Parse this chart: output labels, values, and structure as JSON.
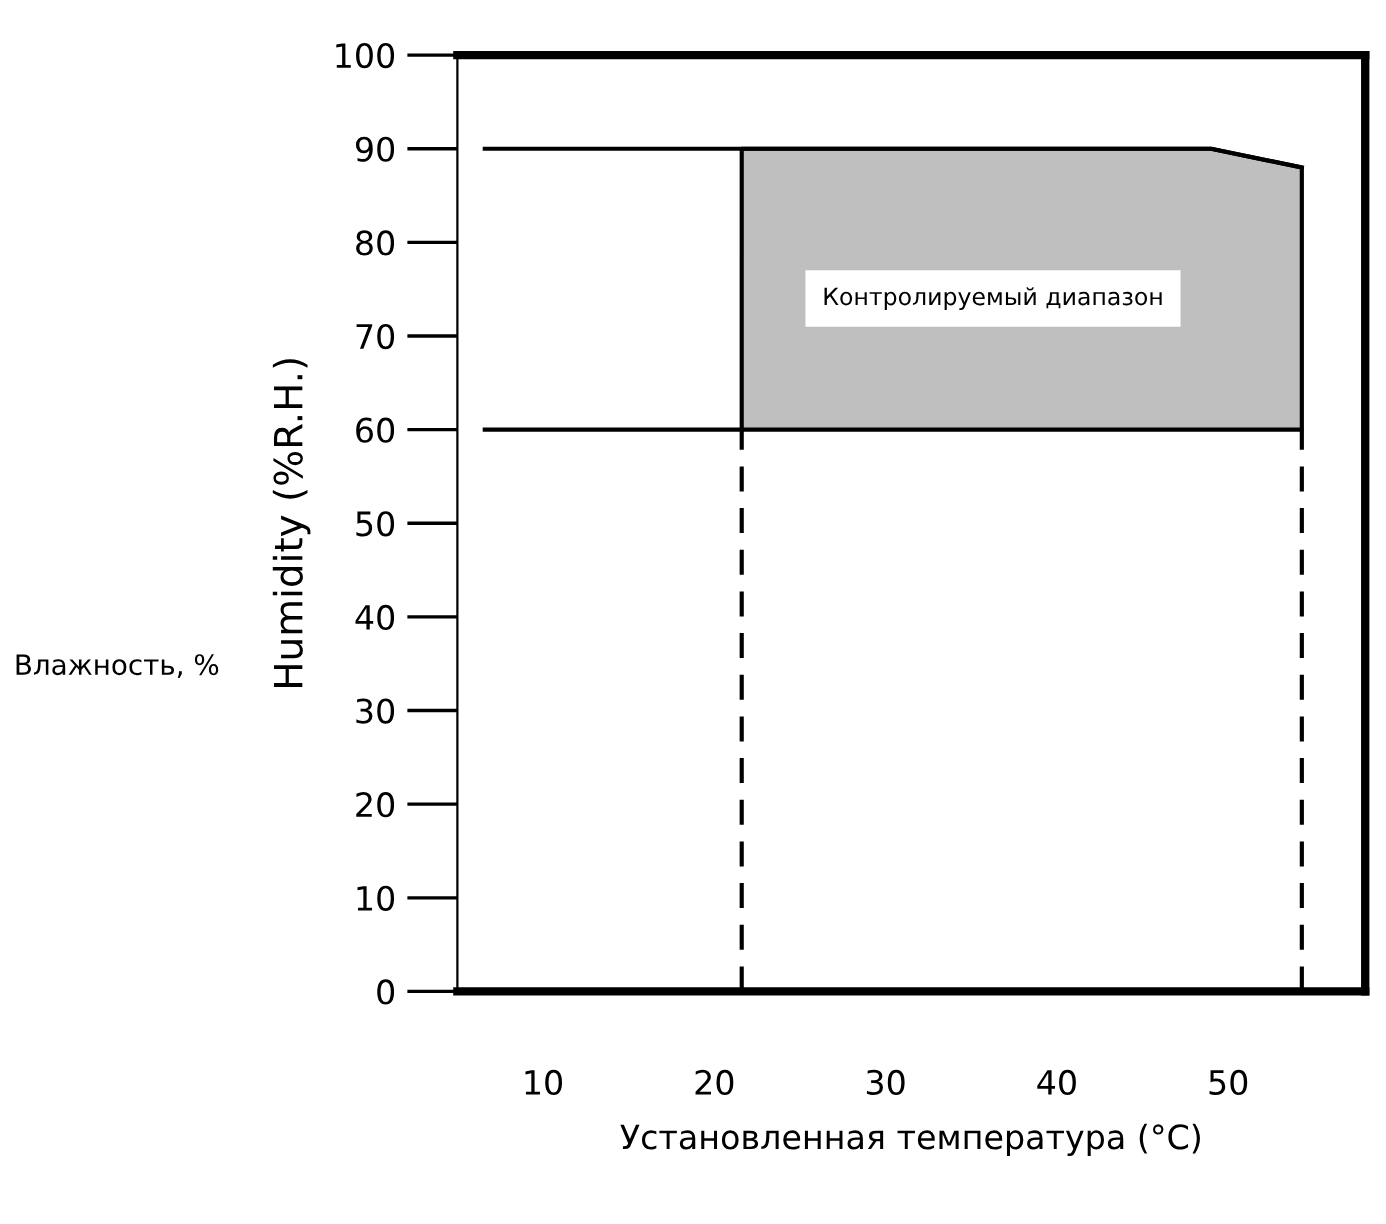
{
  "chart_data": {
    "type": "area",
    "ylabel": "Humidity (%R.H.)",
    "xlabel": "Установленная температура (°C)",
    "annotations": [
      "Контролируемый диапазон",
      "Влажность, %"
    ],
    "series": [
      {
        "type": "line",
        "color": "#000000",
        "x": [
          6.6,
          21.6,
          49,
          54.3
        ],
        "values": [
          90,
          90,
          90,
          88
        ],
        "lower": [
          null,
          60,
          60,
          60
        ],
        "upper": [
          null,
          90,
          90,
          88
        ],
        "line_style": "solid"
      },
      {
        "type": "line",
        "color": "#000000",
        "x": [
          6.6,
          21.6
        ],
        "values": [
          60,
          60
        ],
        "line_style": "solid"
      },
      {
        "type": "line",
        "color": "#000000",
        "x": [
          21.6,
          21.6
        ],
        "values": [
          0,
          60
        ],
        "line_style": "dashed"
      },
      {
        "type": "line",
        "color": "#000000",
        "x": [
          54.3,
          54.3
        ],
        "values": [
          0,
          60
        ],
        "line_style": "dashed"
      }
    ],
    "xlim": [
      5,
      58
    ],
    "xticks": [
      10,
      20,
      30,
      40,
      50
    ],
    "ylim": [
      0,
      100
    ],
    "yticks": [
      0,
      10,
      20,
      30,
      40,
      50,
      60,
      70,
      80,
      90,
      100
    ],
    "grid": false,
    "legend": false
  }
}
